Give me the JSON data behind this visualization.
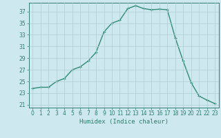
{
  "x": [
    0,
    1,
    2,
    3,
    4,
    5,
    6,
    7,
    8,
    9,
    10,
    11,
    12,
    13,
    14,
    15,
    16,
    17,
    18,
    19,
    20,
    21,
    22,
    23
  ],
  "y": [
    23.8,
    24.0,
    24.0,
    25.0,
    25.5,
    27.0,
    27.5,
    28.5,
    30.0,
    33.5,
    35.0,
    35.5,
    37.5,
    38.0,
    37.5,
    37.3,
    37.4,
    37.3,
    32.5,
    28.5,
    24.8,
    22.5,
    21.8,
    21.2
  ],
  "line_color": "#2e8b74",
  "marker": "+",
  "marker_size": 3,
  "line_width": 1.0,
  "background_color": "#cde8ee",
  "grid_color": "#b0cdd4",
  "xlabel": "Humidex (Indice chaleur)",
  "xlim": [
    -0.5,
    23.5
  ],
  "ylim": [
    20.5,
    38.5
  ],
  "xticks": [
    0,
    1,
    2,
    3,
    4,
    5,
    6,
    7,
    8,
    9,
    10,
    11,
    12,
    13,
    14,
    15,
    16,
    17,
    18,
    19,
    20,
    21,
    22,
    23
  ],
  "yticks": [
    21,
    23,
    25,
    27,
    29,
    31,
    33,
    35,
    37
  ],
  "tick_fontsize": 5.5,
  "xlabel_fontsize": 6.5,
  "axis_color": "#2e7d6e"
}
